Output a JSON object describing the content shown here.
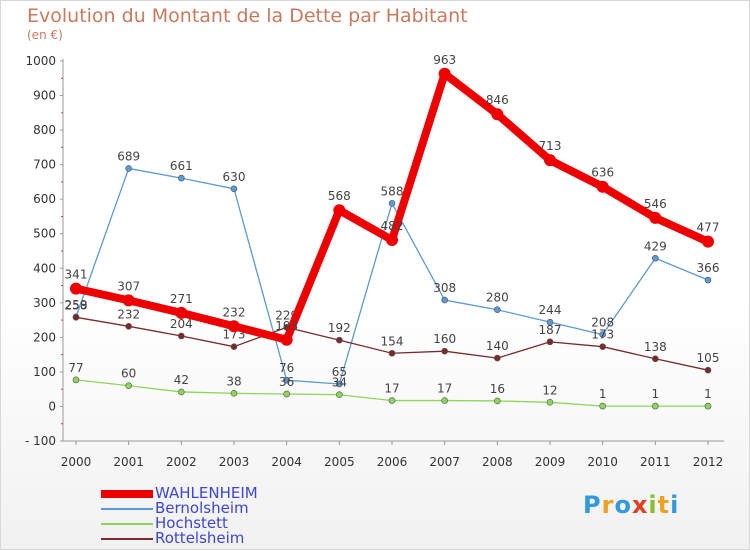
{
  "chart_data": {
    "type": "line",
    "title": "Evolution du Montant de la Dette par Habitant",
    "subtitle": "(en €)",
    "x": [
      "2000",
      "2001",
      "2002",
      "2003",
      "2004",
      "2005",
      "2006",
      "2007",
      "2008",
      "2009",
      "2010",
      "2011",
      "2012"
    ],
    "y_ticks": [
      "1000",
      "900",
      "800",
      "700",
      "600",
      "500",
      "400",
      "300",
      "200",
      "100",
      "0",
      "- 100"
    ],
    "ylim": [
      -100,
      1000
    ],
    "grid": false,
    "legend_position": "bottom-left",
    "series": [
      {
        "name": "WAHLENHEIM",
        "color": "#ee0000",
        "values": [
          341,
          307,
          271,
          232,
          193,
          568,
          482,
          963,
          846,
          713,
          636,
          546,
          477
        ]
      },
      {
        "name": "Bernolsheim",
        "color": "#5b9bd5",
        "values": [
          259,
          689,
          661,
          630,
          76,
          65,
          588,
          308,
          280,
          244,
          208,
          429,
          366
        ]
      },
      {
        "name": "Hochstett",
        "color": "#8ed65a",
        "values": [
          77,
          60,
          42,
          38,
          36,
          34,
          17,
          17,
          16,
          12,
          1,
          1,
          1
        ]
      },
      {
        "name": "Rottelsheim",
        "color": "#7a2a2a",
        "values": [
          258,
          232,
          204,
          173,
          229,
          192,
          154,
          160,
          140,
          187,
          173,
          138,
          105
        ]
      }
    ]
  },
  "logo": {
    "letters": [
      {
        "char": "P",
        "color": "#3399dd"
      },
      {
        "char": "r",
        "color": "#f0a020"
      },
      {
        "char": "o",
        "color": "#3399dd"
      },
      {
        "char": "x",
        "color": "#e04020"
      },
      {
        "char": "i",
        "color": "#88c030"
      },
      {
        "char": "t",
        "color": "#f0a020"
      },
      {
        "char": "i",
        "color": "#3399dd"
      }
    ]
  }
}
